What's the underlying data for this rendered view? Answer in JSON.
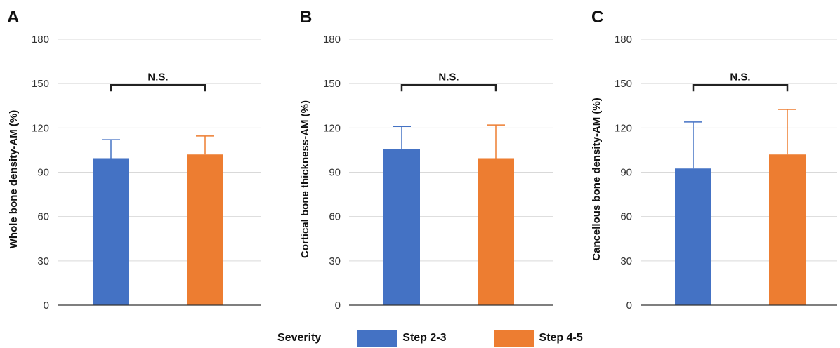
{
  "legend": {
    "title": "Severity",
    "items": [
      {
        "label": "Step 2-3",
        "color": "#4472C4"
      },
      {
        "label": "Step 4-5",
        "color": "#ED7D31"
      }
    ]
  },
  "chart_data": [
    {
      "type": "bar",
      "panel": "A",
      "ylabel": "Whole bone density-AM (%)",
      "ylim": [
        0,
        180
      ],
      "yticks": [
        0,
        30,
        60,
        90,
        120,
        150,
        180
      ],
      "grid": true,
      "categories": [
        "Step 2-3",
        "Step 4-5"
      ],
      "values": [
        99.5,
        102
      ],
      "errors": [
        12.5,
        12.5
      ],
      "significance": {
        "label": "N.S.",
        "y": 149
      }
    },
    {
      "type": "bar",
      "panel": "B",
      "ylabel": "Cortical bone thickness-AM (%)",
      "ylim": [
        0,
        180
      ],
      "yticks": [
        0,
        30,
        60,
        90,
        120,
        150,
        180
      ],
      "grid": true,
      "categories": [
        "Step 2-3",
        "Step 4-5"
      ],
      "values": [
        105.5,
        99.5
      ],
      "errors": [
        15.5,
        22.5
      ],
      "significance": {
        "label": "N.S.",
        "y": 149
      }
    },
    {
      "type": "bar",
      "panel": "C",
      "ylabel": "Cancellous bone density-AM (%)",
      "ylim": [
        0,
        180
      ],
      "yticks": [
        0,
        30,
        60,
        90,
        120,
        150,
        180
      ],
      "grid": true,
      "categories": [
        "Step 2-3",
        "Step 4-5"
      ],
      "values": [
        92.5,
        102
      ],
      "errors": [
        31.5,
        30.5
      ],
      "significance": {
        "label": "N.S.",
        "y": 149
      }
    }
  ]
}
